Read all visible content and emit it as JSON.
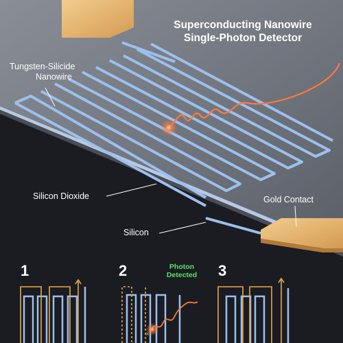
{
  "title": {
    "line1": "Superconducting Nanowire",
    "line2": "Single-Photon Detector"
  },
  "labels": {
    "nanowire_line1": "Tungsten-Silicide",
    "nanowire_line2": "Nanowire",
    "silicon_dioxide": "Silicon Dioxide",
    "silicon": "Silicon",
    "gold_contact": "Gold Contact"
  },
  "steps": {
    "step1": "1",
    "step2": "2",
    "step3": "3",
    "photon_detected_line1": "Photon",
    "photon_detected_line2": "Detected"
  },
  "colors": {
    "background_dark": "#1a1c22",
    "chip_surface": "#7b7f88",
    "nanowire_blue": "#9dc0ec",
    "gold_contact": "#e8b26a",
    "current_orange": "#e8a84a",
    "photon_orange": "#ff7a3d",
    "detected_green": "#5ee06a"
  }
}
